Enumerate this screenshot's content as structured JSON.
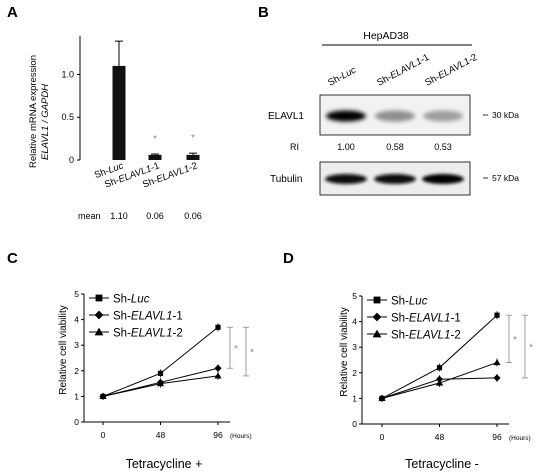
{
  "panels": {
    "a": {
      "letter": "A"
    },
    "b": {
      "letter": "B"
    },
    "c": {
      "letter": "C"
    },
    "d": {
      "letter": "D"
    }
  },
  "chart_data": [
    {
      "panel": "A",
      "type": "bar",
      "ylabel_line1": "Relative mRNA expression",
      "ylabel_line2": "ELAVL1 / GAPDH",
      "yticks": [
        "0",
        "0.5",
        "1.0"
      ],
      "ylim": [
        0,
        1.45
      ],
      "categories": [
        {
          "prefix": "Sh-",
          "italic": "Luc",
          "suffix": ""
        },
        {
          "prefix": "Sh-",
          "italic": "ELAVL1",
          "suffix": "-1"
        },
        {
          "prefix": "Sh-",
          "italic": "ELAVL1",
          "suffix": "-2"
        }
      ],
      "values": [
        1.1,
        0.06,
        0.06
      ],
      "errors": [
        0.29,
        0.01,
        0.02
      ],
      "significance": [
        "",
        "*",
        "*"
      ],
      "mean_label": "mean",
      "mean_values": [
        "1.10",
        "0.06",
        "0.06"
      ]
    },
    {
      "panel": "C",
      "type": "line",
      "x": [
        0,
        48,
        96
      ],
      "xtick_labels": [
        "0",
        "48",
        "96"
      ],
      "x_unit": "(Hours)",
      "xlabel": "Tetracycline +",
      "ylabel": "Relative cell viability",
      "yticks": [
        "0",
        "1",
        "2",
        "3",
        "4",
        "5"
      ],
      "ylim": [
        0,
        5
      ],
      "series": [
        {
          "prefix": "Sh-",
          "italic": "Luc",
          "suffix": "",
          "marker": "square",
          "values": [
            1.0,
            1.9,
            3.7
          ]
        },
        {
          "prefix": "Sh-",
          "italic": "ELAVL1",
          "suffix": "-1",
          "marker": "diamond",
          "values": [
            1.0,
            1.55,
            2.1
          ]
        },
        {
          "prefix": "Sh-",
          "italic": "ELAVL1",
          "suffix": "-2",
          "marker": "triangle",
          "values": [
            1.0,
            1.5,
            1.8
          ]
        }
      ],
      "significance": [
        "*",
        "*"
      ]
    },
    {
      "panel": "D",
      "type": "line",
      "x": [
        0,
        48,
        96
      ],
      "xtick_labels": [
        "0",
        "48",
        "96"
      ],
      "x_unit": "(Hours)",
      "xlabel": "Tetracycline -",
      "ylabel": "Relative cell viability",
      "yticks": [
        "0",
        "1",
        "2",
        "3",
        "4",
        "5"
      ],
      "ylim": [
        0,
        5
      ],
      "series": [
        {
          "prefix": "Sh-",
          "italic": "Luc",
          "suffix": "",
          "marker": "square",
          "values": [
            1.0,
            2.2,
            4.25
          ]
        },
        {
          "prefix": "Sh-",
          "italic": "ELAVL1",
          "suffix": "-1",
          "marker": "diamond",
          "values": [
            1.0,
            1.75,
            1.8
          ]
        },
        {
          "prefix": "Sh-",
          "italic": "ELAVL1",
          "suffix": "-2",
          "marker": "triangle",
          "values": [
            1.0,
            1.6,
            2.4
          ]
        }
      ],
      "significance": [
        "*",
        "*"
      ]
    }
  ],
  "blot": {
    "cell_line": "HepAD38",
    "lanes": [
      {
        "prefix": "Sh-",
        "italic": "Luc",
        "suffix": ""
      },
      {
        "prefix": "Sh-",
        "italic": "ELAVL1",
        "suffix": "-1"
      },
      {
        "prefix": "Sh-",
        "italic": "ELAVL1",
        "suffix": "-2"
      }
    ],
    "rows": [
      {
        "label": "ELAVL1",
        "size": "30 kDa",
        "intensity": [
          1.0,
          0.3,
          0.22
        ]
      },
      {
        "label": "Tubulin",
        "size": "57 kDa",
        "intensity": [
          0.95,
          0.95,
          1.0
        ]
      }
    ],
    "ri_label": "RI",
    "ri_values": [
      "1.00",
      "0.58",
      "0.53"
    ]
  }
}
